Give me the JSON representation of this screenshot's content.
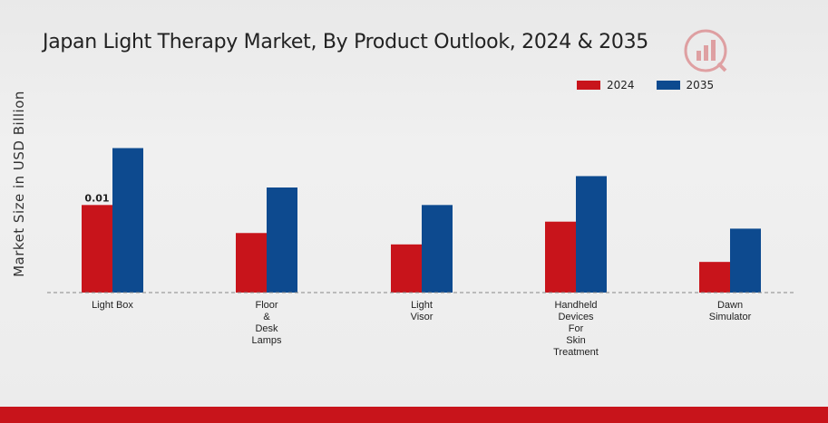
{
  "chart_data": {
    "type": "bar",
    "title": "Japan Light Therapy Market, By Product Outlook, 2024 & 2035",
    "ylabel": "Market Size in USD Billion",
    "xlabel": "",
    "categories": [
      "Light Box",
      "Floor\n&\nDesk\nLamps",
      "Light\nVisor",
      "Handheld\nDevices\nFor\nSkin\nTreatment",
      "Dawn\nSimulator"
    ],
    "series": [
      {
        "name": "2024",
        "color": "#c8141b",
        "values": [
          0.01,
          0.0068,
          0.0055,
          0.0081,
          0.0035
        ]
      },
      {
        "name": "2035",
        "color": "#0d4a8f",
        "values": [
          0.0165,
          0.012,
          0.01,
          0.0133,
          0.0073
        ]
      }
    ],
    "data_labels": [
      {
        "series": 0,
        "index": 0,
        "text": "0.01"
      }
    ],
    "ylim": [
      0,
      0.03
    ],
    "grid": false,
    "baseline": "dashed",
    "legend_position": "top-right"
  },
  "legend": [
    {
      "label": "2024",
      "color": "#c8141b"
    },
    {
      "label": "2035",
      "color": "#0d4a8f"
    }
  ],
  "watermark": {
    "icon": "market-research-logo-icon"
  },
  "footer_bar_color": "#c8141b"
}
